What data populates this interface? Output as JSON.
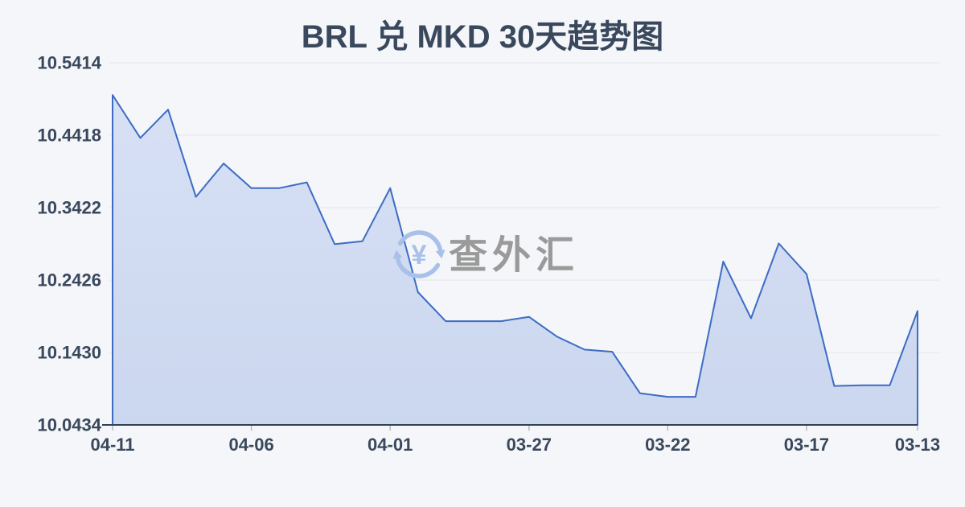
{
  "title": "BRL 兑 MKD 30天趋势图",
  "watermark": {
    "icon": "currency-exchange-arrows-icon",
    "symbol": "¥",
    "text": "查外汇"
  },
  "colors": {
    "background": "#f4f6f9",
    "line": "#3d6cc3",
    "area_top": "#d7e0f5",
    "area_bottom": "#cbd7ef",
    "grid": "#e3e6eb",
    "axis": "#333f52",
    "tick": "#b3bac4",
    "label_text": "#39485c",
    "watermark_icon": "#a9c0e8",
    "watermark_text": "#9a9a9a"
  },
  "chart_data": {
    "type": "area",
    "title": "BRL 兑 MKD 30天趋势图",
    "x": [
      "04-11",
      "04-10",
      "04-09",
      "04-08",
      "04-07",
      "04-06",
      "04-05",
      "04-04",
      "04-03",
      "04-02",
      "04-01",
      "03-31",
      "03-30",
      "03-29",
      "03-28",
      "03-27",
      "03-26",
      "03-25",
      "03-24",
      "03-23",
      "03-22",
      "03-21",
      "03-20",
      "03-19",
      "03-18",
      "03-17",
      "03-16",
      "03-15",
      "03-14",
      "03-13"
    ],
    "values": [
      10.497,
      10.438,
      10.477,
      10.357,
      10.403,
      10.369,
      10.369,
      10.377,
      10.292,
      10.296,
      10.369,
      10.226,
      10.186,
      10.186,
      10.186,
      10.192,
      10.165,
      10.147,
      10.144,
      10.087,
      10.082,
      10.082,
      10.268,
      10.19,
      10.293,
      10.251,
      10.097,
      10.098,
      10.098,
      10.2
    ],
    "x_tick_labels": [
      "04-11",
      "04-06",
      "04-01",
      "03-27",
      "03-22",
      "03-17",
      "03-13"
    ],
    "x_tick_indices": [
      0,
      5,
      10,
      15,
      20,
      25,
      29
    ],
    "y_tick_labels": [
      "10.5414",
      "10.4418",
      "10.3422",
      "10.2426",
      "10.1430",
      "10.0434"
    ],
    "ylim": [
      10.0434,
      10.5414
    ],
    "xlabel": "",
    "ylabel": "",
    "grid": "horizontal-only",
    "legend": "none",
    "x_axis_note": "dates run newest (left) to oldest (right)"
  }
}
